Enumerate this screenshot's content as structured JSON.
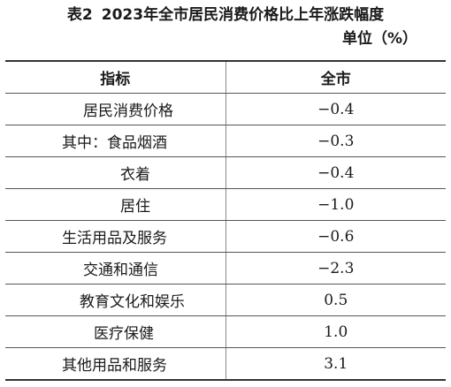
{
  "title": {
    "table_no": "表2",
    "text": "2023年全市居民消费价格比上年涨跌幅度"
  },
  "unit": "单位（%）",
  "table": {
    "headers": [
      "指标",
      "全市"
    ],
    "rows": [
      {
        "label": "居民消费价格",
        "value": "−0.4"
      },
      {
        "label": "其中：食品烟酒",
        "value": "−0.3"
      },
      {
        "label": "衣着",
        "value": "−0.4"
      },
      {
        "label": "居住",
        "value": "−1.0"
      },
      {
        "label": "生活用品及服务",
        "value": "−0.6"
      },
      {
        "label": "交通和通信",
        "value": "−2.3"
      },
      {
        "label": "教育文化和娱乐",
        "value": "0.5"
      },
      {
        "label": "医疗保健",
        "value": "1.0"
      },
      {
        "label": "其他用品和服务",
        "value": "3.1"
      }
    ]
  }
}
